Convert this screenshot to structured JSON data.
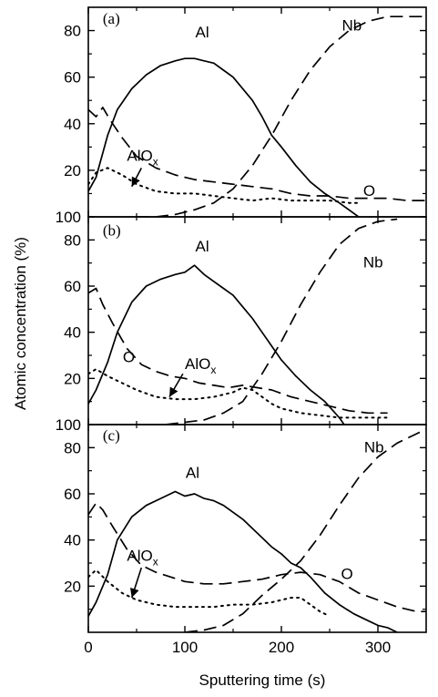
{
  "chart_data": [
    {
      "type": "line",
      "panel_label": "(a)",
      "ylabel": "Atomic concentration (%)",
      "xlabel": "Sputtering time (s)",
      "xlim": [
        0,
        350
      ],
      "ylim": [
        0,
        90
      ],
      "xticks": [
        "0",
        "100",
        "200",
        "300"
      ],
      "yticks": [
        "100",
        "20",
        "40",
        "60",
        "80"
      ],
      "series": [
        {
          "name": "Al",
          "style": "solid",
          "x": [
            0,
            8,
            20,
            30,
            45,
            60,
            75,
            90,
            100,
            110,
            120,
            130,
            140,
            150,
            160,
            170,
            180,
            190,
            200,
            215,
            230,
            245,
            260,
            270,
            280
          ],
          "y": [
            11,
            17,
            35,
            46,
            55,
            61,
            65,
            67,
            68,
            68,
            67,
            66,
            63,
            60,
            55,
            50,
            43,
            35,
            30,
            22,
            15,
            10,
            6,
            3,
            0
          ]
        },
        {
          "name": "Nb",
          "style": "dashed",
          "x": [
            50,
            70,
            90,
            110,
            130,
            150,
            170,
            190,
            210,
            230,
            250,
            270,
            290,
            310,
            330,
            350
          ],
          "y": [
            0,
            0,
            1,
            3,
            6,
            12,
            22,
            35,
            50,
            63,
            73,
            80,
            84,
            86,
            86,
            86
          ]
        },
        {
          "name": "O",
          "style": "dashed",
          "x": [
            0,
            8,
            15,
            22,
            35,
            50,
            70,
            90,
            110,
            130,
            150,
            170,
            190,
            210,
            230,
            250,
            270,
            290,
            310,
            330,
            350
          ],
          "y": [
            46,
            43,
            47,
            42,
            34,
            26,
            21,
            18,
            16,
            15,
            14,
            13,
            12,
            10,
            9,
            9,
            8,
            8,
            8,
            7,
            7
          ]
        },
        {
          "name": "AlOx",
          "style": "dotted",
          "x": [
            0,
            8,
            20,
            35,
            50,
            70,
            90,
            110,
            130,
            150,
            170,
            190,
            210,
            230,
            250,
            270,
            280
          ],
          "y": [
            14,
            19,
            21,
            18,
            14,
            11,
            10,
            10,
            9,
            8,
            7,
            8,
            7,
            7,
            7,
            6,
            6
          ]
        }
      ],
      "annotations": {
        "Al": "Al",
        "Nb": "Nb",
        "O": "O",
        "AlOx_main": "AlO",
        "AlOx_sub": "x"
      }
    },
    {
      "type": "line",
      "panel_label": "(b)",
      "xlim": [
        0,
        350
      ],
      "ylim": [
        0,
        90
      ],
      "xticks": [
        "0",
        "100",
        "200",
        "300"
      ],
      "yticks": [
        "100",
        "20",
        "40",
        "60",
        "80"
      ],
      "series": [
        {
          "name": "Al",
          "style": "solid",
          "x": [
            0,
            8,
            20,
            30,
            45,
            60,
            75,
            90,
            100,
            110,
            120,
            130,
            140,
            150,
            160,
            170,
            180,
            190,
            200,
            215,
            230,
            245,
            260,
            265
          ],
          "y": [
            9,
            15,
            27,
            40,
            53,
            60,
            63,
            65,
            66,
            69,
            65,
            62,
            59,
            56,
            51,
            46,
            40,
            34,
            28,
            21,
            15,
            10,
            3,
            0
          ]
        },
        {
          "name": "Nb",
          "style": "dashed",
          "x": [
            80,
            100,
            120,
            140,
            160,
            180,
            200,
            220,
            240,
            260,
            280,
            300,
            320
          ],
          "y": [
            0,
            1,
            2,
            5,
            10,
            22,
            36,
            52,
            66,
            78,
            85,
            88,
            89
          ]
        },
        {
          "name": "O",
          "style": "dashed",
          "x": [
            0,
            8,
            15,
            25,
            40,
            55,
            70,
            85,
            100,
            115,
            130,
            145,
            160,
            175,
            190,
            210,
            230,
            250,
            270,
            290,
            310
          ],
          "y": [
            57,
            59,
            52,
            44,
            33,
            26,
            23,
            21,
            20,
            18,
            17,
            16,
            17,
            16,
            15,
            12,
            10,
            8,
            6,
            5,
            5
          ]
        },
        {
          "name": "AlOx",
          "style": "dotted",
          "x": [
            0,
            8,
            20,
            35,
            50,
            70,
            90,
            110,
            130,
            150,
            160,
            170,
            180,
            190,
            200,
            220,
            240,
            260,
            280,
            300,
            310
          ],
          "y": [
            22,
            24,
            21,
            18,
            15,
            12,
            11,
            11,
            12,
            14,
            16,
            15,
            12,
            9,
            7,
            5,
            4,
            3,
            3,
            3,
            3
          ]
        }
      ],
      "annotations": {
        "Al": "Al",
        "Nb": "Nb",
        "O": "O",
        "AlOx_main": "AlO",
        "AlOx_sub": "x"
      }
    },
    {
      "type": "line",
      "panel_label": "(c)",
      "xlim": [
        0,
        350
      ],
      "ylim": [
        0,
        90
      ],
      "xticks": [
        "0",
        "100",
        "200",
        "300"
      ],
      "yticks": [
        "20",
        "40",
        "60",
        "80"
      ],
      "series": [
        {
          "name": "Al",
          "style": "solid",
          "x": [
            0,
            8,
            20,
            30,
            45,
            60,
            75,
            90,
            100,
            110,
            120,
            130,
            140,
            150,
            160,
            170,
            180,
            190,
            200,
            210,
            220,
            230,
            245,
            260,
            275,
            290,
            300,
            310,
            320
          ],
          "y": [
            7,
            13,
            25,
            40,
            50,
            55,
            58,
            61,
            59,
            60,
            58,
            57,
            55,
            52,
            49,
            45,
            41,
            37,
            34,
            30,
            28,
            24,
            17,
            12,
            8,
            5,
            3,
            2,
            0
          ]
        },
        {
          "name": "Nb",
          "style": "dashed",
          "x": [
            100,
            120,
            140,
            160,
            180,
            200,
            220,
            240,
            260,
            280,
            300,
            320,
            340,
            350
          ],
          "y": [
            0,
            1,
            3,
            8,
            16,
            23,
            31,
            42,
            55,
            67,
            76,
            82,
            86,
            88
          ]
        },
        {
          "name": "O",
          "style": "dashed",
          "x": [
            0,
            8,
            15,
            25,
            40,
            55,
            70,
            85,
            100,
            120,
            140,
            160,
            180,
            200,
            220,
            240,
            260,
            280,
            300,
            320,
            340,
            350
          ],
          "y": [
            51,
            56,
            53,
            46,
            36,
            29,
            26,
            24,
            22,
            21,
            21,
            22,
            23,
            25,
            26,
            25,
            22,
            17,
            14,
            11,
            9,
            9
          ]
        },
        {
          "name": "AlOx",
          "style": "dotted",
          "x": [
            0,
            8,
            20,
            35,
            50,
            70,
            90,
            110,
            130,
            150,
            170,
            190,
            210,
            220,
            230,
            240,
            250
          ],
          "y": [
            24,
            27,
            22,
            17,
            14,
            12,
            11,
            11,
            11,
            12,
            12,
            13,
            15,
            15,
            12,
            9,
            7
          ]
        }
      ],
      "annotations": {
        "Al": "Al",
        "Nb": "Nb",
        "O": "O",
        "AlOx_main": "AlO",
        "AlOx_sub": "x"
      }
    }
  ]
}
